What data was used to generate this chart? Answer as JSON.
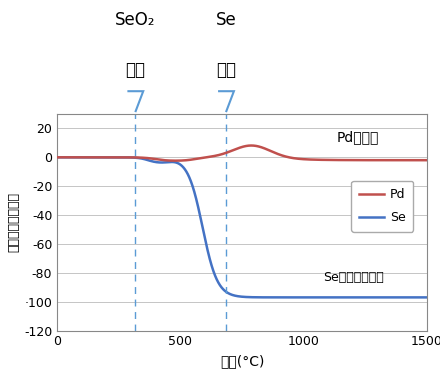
{
  "xlabel": "温度(°C)",
  "ylabel": "熱重量分析（％）",
  "xlim": [
    0,
    1500
  ],
  "ylim": [
    -120,
    30
  ],
  "yticks": [
    -120,
    -100,
    -80,
    -60,
    -40,
    -20,
    0,
    20
  ],
  "ytick_labels": [
    "-120",
    "·100",
    "-80",
    "-60",
    "-40",
    "-20",
    "0",
    "20"
  ],
  "xticks": [
    0,
    500,
    1000,
    1500
  ],
  "vline1_x": 317,
  "vline2_x": 685,
  "vline_color": "#5B9BD5",
  "pd_color": "#C0504D",
  "se_color": "#4472C4",
  "annotation_pd": "Pdは残存",
  "annotation_se": "Seは完全に揮発",
  "label_seo2_line1": "SeO₂",
  "label_seo2_line2": "沸点",
  "label_se_line1": "Se",
  "label_se_line2": "沸点",
  "legend_pd": "Pd",
  "legend_se": "Se",
  "background_color": "#ffffff",
  "grid_color": "#bbbbbb"
}
